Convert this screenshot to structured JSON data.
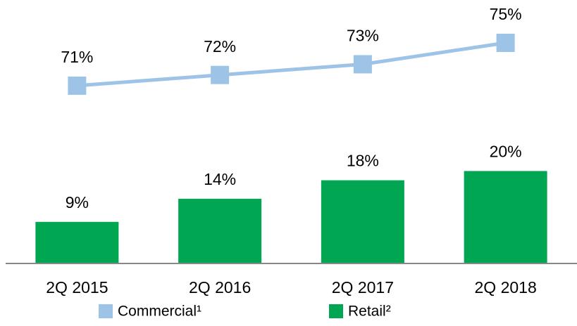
{
  "chart_data": {
    "type": "bar",
    "categories": [
      "2Q 2015",
      "2Q 2016",
      "2Q 2017",
      "2Q 2018"
    ],
    "ylim": [
      0,
      57
    ],
    "y2lim": [
      54.4,
      79
    ],
    "series": [
      {
        "name": "Commercial¹",
        "type": "line",
        "axis": "y2",
        "color": "#9dc3e6",
        "values": [
          71,
          72,
          73,
          75
        ],
        "value_labels": [
          "71%",
          "72%",
          "73%",
          "75%"
        ]
      },
      {
        "name": "Retail²",
        "type": "bar",
        "color": "#00a651",
        "values": [
          9,
          14,
          18,
          20
        ],
        "value_labels": [
          "9%",
          "14%",
          "18%",
          "20%"
        ]
      }
    ],
    "legend": "bottom"
  }
}
